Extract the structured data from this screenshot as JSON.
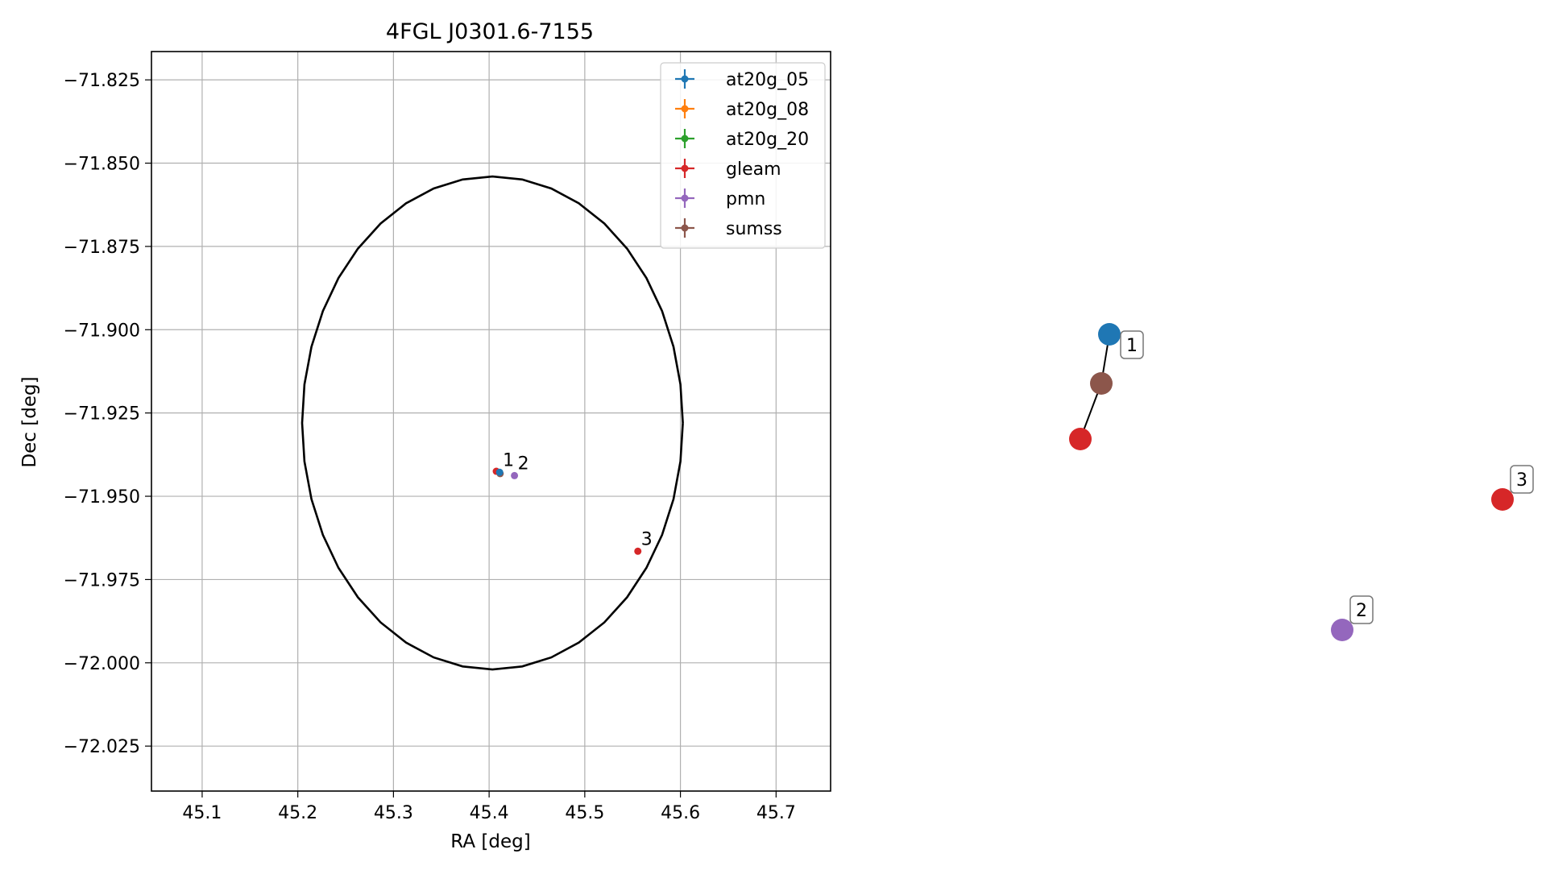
{
  "chart_data": [
    {
      "type": "scatter",
      "title": "4FGL J0301.6-7155",
      "xlabel": "RA [deg]",
      "ylabel": "Dec [deg]",
      "xlim": [
        45.047,
        45.757
      ],
      "ylim": [
        -72.0385,
        -71.8165
      ],
      "xticks": [
        45.1,
        45.2,
        45.3,
        45.4,
        45.5,
        45.6,
        45.7
      ],
      "xtick_labels": [
        "45.1",
        "45.2",
        "45.3",
        "45.4",
        "45.5",
        "45.6",
        "45.7"
      ],
      "yticks": [
        -71.825,
        -71.85,
        -71.875,
        -71.9,
        -71.925,
        -71.95,
        -71.975,
        -72.0,
        -72.025
      ],
      "ytick_labels": [
        "−71.825",
        "−71.850",
        "−71.875",
        "−71.900",
        "−71.925",
        "−71.950",
        "−71.975",
        "−72.000",
        "−72.025"
      ],
      "grid": true,
      "legend_position": "top-right",
      "legend": [
        {
          "label": "at20g_05",
          "color": "#1f77b4"
        },
        {
          "label": "at20g_08",
          "color": "#ff7f0e"
        },
        {
          "label": "at20g_20",
          "color": "#2ca02c"
        },
        {
          "label": "gleam",
          "color": "#d62728"
        },
        {
          "label": "pmn",
          "color": "#9467bd"
        },
        {
          "label": "sumss",
          "color": "#8c564b"
        }
      ],
      "ellipse": {
        "center": [
          45.4035,
          -71.928
        ],
        "semi_axis_ra": 0.199,
        "semi_axis_dec": 0.074,
        "color": "#000000"
      },
      "points": [
        {
          "catalog": "gleam",
          "ra": 45.4075,
          "dec": -71.9425,
          "color": "#d62728"
        },
        {
          "catalog": "sumss",
          "ra": 45.4115,
          "dec": -71.9432,
          "color": "#8c564b"
        },
        {
          "catalog": "at20g_05",
          "ra": 45.411,
          "dec": -71.9428,
          "color": "#1f77b4"
        },
        {
          "catalog": "pmn",
          "ra": 45.4265,
          "dec": -71.9438,
          "color": "#9467bd"
        },
        {
          "catalog": "gleam",
          "ra": 45.5555,
          "dec": -71.9665,
          "color": "#d62728"
        }
      ],
      "point_labels": [
        {
          "text": "1",
          "ra": 45.411,
          "dec": -71.9428
        },
        {
          "text": "2",
          "ra": 45.4265,
          "dec": -71.9438
        },
        {
          "text": "3",
          "ra": 45.5555,
          "dec": -71.9665
        }
      ]
    },
    {
      "type": "network",
      "nodes": [
        {
          "id": "at20g_05",
          "color": "#1f77b4",
          "label": ""
        },
        {
          "id": "sumss",
          "color": "#8c564b",
          "label": ""
        },
        {
          "id": "gleam_1",
          "color": "#d62728",
          "label": ""
        },
        {
          "id": "gleam_3",
          "color": "#d62728",
          "label": "3"
        },
        {
          "id": "pmn_2",
          "color": "#9467bd",
          "label": "2"
        }
      ],
      "edges": [
        [
          "at20g_05",
          "sumss"
        ],
        [
          "sumss",
          "gleam_1"
        ]
      ],
      "group_labels": [
        {
          "text": "1",
          "node": "at20g_05"
        }
      ]
    }
  ]
}
